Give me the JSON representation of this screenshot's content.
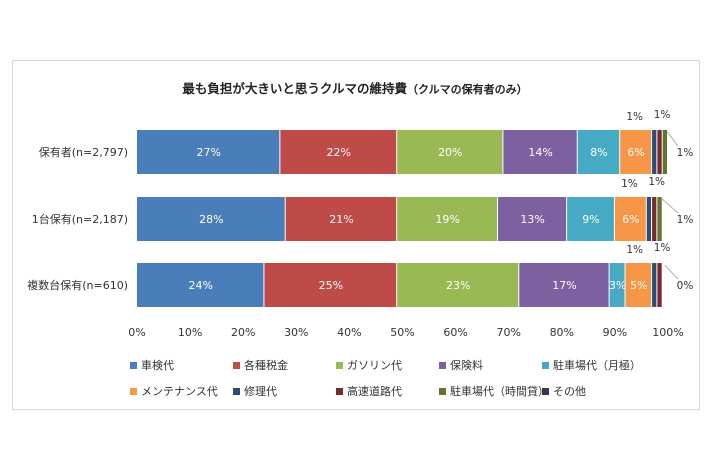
{
  "chart_data": {
    "type": "bar",
    "stacked": true,
    "orientation": "horizontal",
    "title": "最も負担が大きいと思うクルマの維持費",
    "subtitle": "（クルマの保有者のみ）",
    "categories": [
      "保有者(n=2,797)",
      "1台保有(n=2,187)",
      "複数台保有(n=610)"
    ],
    "xlim": [
      0,
      100
    ],
    "xticks": [
      "0%",
      "10%",
      "20%",
      "30%",
      "40%",
      "50%",
      "60%",
      "70%",
      "80%",
      "90%",
      "100%"
    ],
    "legend_position": "bottom",
    "series": [
      {
        "name": "車検代",
        "color": "#4a7ebb",
        "values": [
          27,
          28,
          24
        ]
      },
      {
        "name": "各種税金",
        "color": "#be4b48",
        "values": [
          22,
          21,
          25
        ]
      },
      {
        "name": "ガソリン代",
        "color": "#98b954",
        "values": [
          20,
          19,
          23
        ]
      },
      {
        "name": "保険料",
        "color": "#7d60a0",
        "values": [
          14,
          13,
          17
        ]
      },
      {
        "name": "駐車場代（月極）",
        "color": "#46aac5",
        "values": [
          8,
          9,
          3
        ]
      },
      {
        "name": "メンテナンス代",
        "color": "#f79646",
        "values": [
          6,
          6,
          5
        ]
      },
      {
        "name": "修理代",
        "color": "#2c4d75",
        "values": [
          1,
          1,
          1
        ]
      },
      {
        "name": "高速道路代",
        "color": "#772c2a",
        "values": [
          1,
          1,
          1
        ]
      },
      {
        "name": "駐車場代（時間貸）",
        "color": "#5f7530",
        "values": [
          1,
          1,
          0
        ]
      },
      {
        "name": "その他",
        "color": "#3f3151",
        "values": [
          0,
          0,
          0
        ]
      }
    ],
    "labels": [
      [
        "27%",
        "22%",
        "20%",
        "14%",
        "8%",
        "6%",
        "1%",
        "1%",
        "1%",
        ""
      ],
      [
        "28%",
        "21%",
        "19%",
        "13%",
        "9%",
        "6%",
        "1%",
        "1%",
        "1%",
        ""
      ],
      [
        "24%",
        "25%",
        "23%",
        "17%",
        "3%",
        "5%",
        "1%",
        "1%",
        "0%",
        ""
      ]
    ]
  }
}
